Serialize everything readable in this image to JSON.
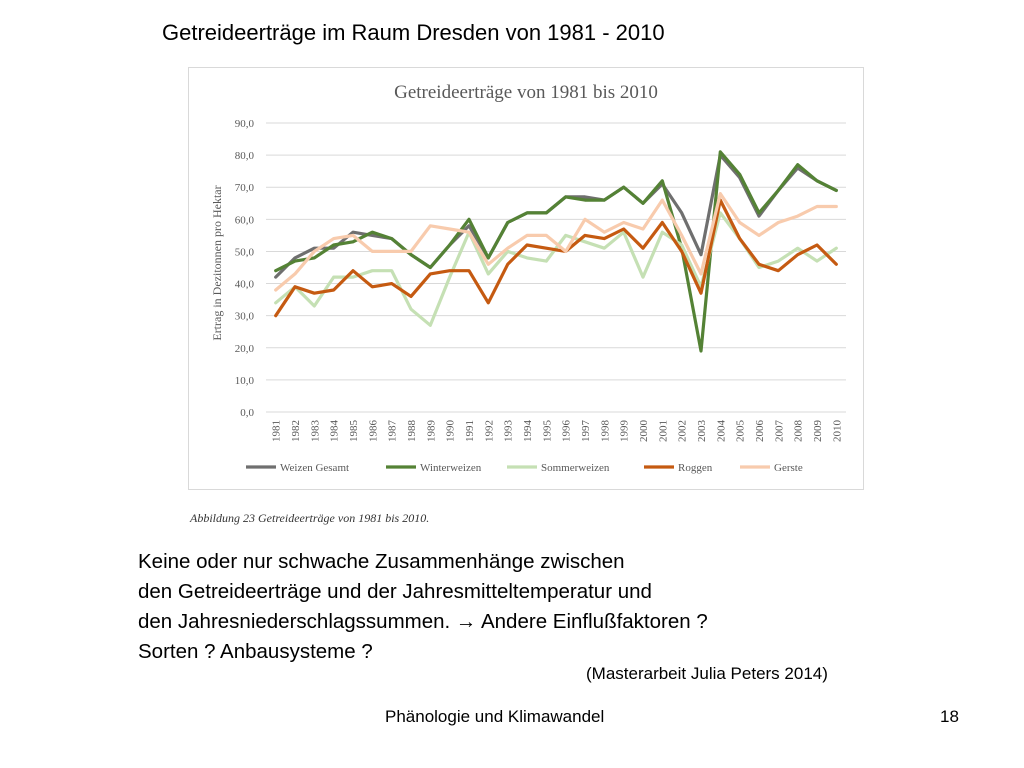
{
  "slide": {
    "title": "Getreideerträge im Raum Dresden von 1981 - 2010",
    "caption": "Abbildung 23 Getreideerträge von 1981 bis 2010.",
    "body_lines": [
      "Keine oder nur schwache Zusammenhänge zwischen",
      "den Getreideerträge und der Jahresmitteltemperatur und",
      "den Jahresniederschlagssummen. → Andere Einflußfaktoren ?",
      "Sorten ? Anbausysteme ?"
    ],
    "citation": "(Masterarbeit Julia Peters 2014)",
    "footer": "Phänologie und Klimawandel",
    "page_number": "18"
  },
  "chart_data": {
    "type": "line",
    "title": "Getreideerträge von 1981 bis 2010",
    "xlabel": "",
    "ylabel": "Ertrag in Dezitonnen pro Hektar",
    "ylim": [
      0,
      90
    ],
    "yticks": [
      "0,0",
      "10,0",
      "20,0",
      "30,0",
      "40,0",
      "50,0",
      "60,0",
      "70,0",
      "80,0",
      "90,0"
    ],
    "grid": true,
    "legend_position": "bottom",
    "categories": [
      "1981",
      "1982",
      "1983",
      "1984",
      "1985",
      "1986",
      "1987",
      "1988",
      "1989",
      "1990",
      "1991",
      "1992",
      "1993",
      "1994",
      "1995",
      "1996",
      "1997",
      "1998",
      "1999",
      "2000",
      "2001",
      "2002",
      "2003",
      "2004",
      "2005",
      "2006",
      "2007",
      "2008",
      "2009",
      "2010"
    ],
    "series": [
      {
        "name": "Weizen Gesamt",
        "color": "#6f6f6f",
        "values": [
          42,
          48,
          51,
          51,
          56,
          55,
          54,
          49,
          45,
          52,
          58,
          48,
          59,
          62,
          62,
          67,
          67,
          66,
          70,
          65,
          71,
          62,
          49,
          80,
          73,
          61,
          69,
          76,
          72,
          69
        ]
      },
      {
        "name": "Winterweizen",
        "color": "#548235",
        "values": [
          44,
          47,
          48,
          52,
          53,
          56,
          54,
          49,
          45,
          52,
          60,
          48,
          59,
          62,
          62,
          67,
          66,
          66,
          70,
          65,
          72,
          51,
          19,
          81,
          74,
          62,
          69,
          77,
          72,
          69
        ]
      },
      {
        "name": "Sommerweizen",
        "color": "#c5e0b4",
        "values": [
          34,
          39,
          33,
          42,
          42,
          44,
          44,
          32,
          27,
          42,
          56,
          43,
          50,
          48,
          47,
          55,
          53,
          51,
          56,
          42,
          56,
          52,
          39,
          62,
          54,
          45,
          47,
          51,
          47,
          51
        ]
      },
      {
        "name": "Roggen",
        "color": "#c55a11",
        "values": [
          30,
          39,
          37,
          38,
          44,
          39,
          40,
          36,
          43,
          44,
          44,
          34,
          46,
          52,
          51,
          50,
          55,
          54,
          57,
          51,
          59,
          50,
          37,
          66,
          54,
          46,
          44,
          49,
          52,
          46
        ]
      },
      {
        "name": "Gerste",
        "color": "#f8cbad",
        "values": [
          38,
          43,
          50,
          54,
          55,
          50,
          50,
          50,
          58,
          57,
          56,
          46,
          51,
          55,
          55,
          50,
          60,
          56,
          59,
          57,
          66,
          55,
          43,
          68,
          59,
          55,
          59,
          61,
          64,
          64
        ]
      }
    ]
  }
}
